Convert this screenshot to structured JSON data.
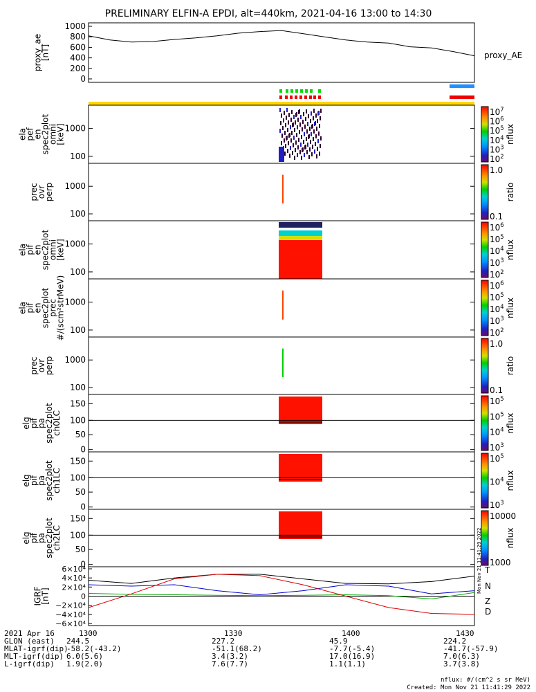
{
  "title": "PRELIMINARY ELFIN-A EPDI, alt=440km, 2021-04-16 13:00 to 14:30",
  "colors": {
    "flag_yellow": "#ffd700",
    "flag_green": "#00dd00",
    "flag_red": "#ee0000",
    "flag_blue": "#1e90ff",
    "mag_T": "#000000",
    "mag_N": "#0000cc",
    "mag_Z": "#00aa00",
    "mag_D": "#dd0000",
    "spec_red": "#ff1100"
  },
  "chart_data": [
    {
      "type": "line",
      "panel": "proxy_ae",
      "ylabel": "proxy_ae [nT]",
      "legend": "proxy_AE",
      "ylim": [
        0,
        1000
      ],
      "yticks": [
        "1000",
        "800",
        "600",
        "400",
        "200",
        "0"
      ],
      "x_minutes": [
        0,
        5,
        10,
        15,
        20,
        25,
        30,
        35,
        40,
        45,
        50,
        55,
        60,
        65,
        70,
        75,
        80,
        85,
        90
      ],
      "values": [
        820,
        740,
        700,
        710,
        750,
        780,
        820,
        870,
        900,
        920,
        860,
        800,
        740,
        700,
        680,
        610,
        590,
        520,
        440
      ]
    },
    {
      "type": "heatmap",
      "panel": "elx_pef_en_spec2plot_omni",
      "ylabel": "ela pef en spec2plot omni [keV]",
      "yticks": [
        "1000",
        "100"
      ],
      "colorbar_ticks": [
        "10^7",
        "10^6",
        "10^5",
        "10^4",
        "10^3",
        "10^2"
      ],
      "colorbar_label": "nflux"
    },
    {
      "type": "heatmap",
      "panel": "prec_ovr_perp_e",
      "ylabel": "prec ovr perp",
      "yticks": [
        "1000",
        "100"
      ],
      "colorbar_ticks": [
        "1.0",
        "0.1"
      ],
      "colorbar_label": "ratio"
    },
    {
      "type": "heatmap",
      "panel": "ela_pif_en_spec2plot_omni",
      "ylabel": "ela pif en spec2plot omni [keV]",
      "yticks": [
        "1000",
        "100"
      ],
      "colorbar_ticks": [
        "10^6",
        "10^5",
        "10^4",
        "10^3",
        "10^2"
      ],
      "colorbar_label": "nflux"
    },
    {
      "type": "heatmap",
      "panel": "ela_pif_en_spec2plot_prec",
      "ylabel": "ela pif en spec2plot prec #/(scm²strMeV)",
      "yticks": [
        "1000",
        "100"
      ],
      "colorbar_ticks": [
        "10^6",
        "10^5",
        "10^4",
        "10^3",
        "10^2"
      ],
      "colorbar_label": "nflux"
    },
    {
      "type": "heatmap",
      "panel": "prec_ovr_perp_i",
      "ylabel": "prec ovr perp",
      "yticks": [
        "1000",
        "100"
      ],
      "colorbar_ticks": [
        "1.0",
        "0.1"
      ],
      "colorbar_label": "ratio"
    },
    {
      "type": "heatmap",
      "panel": "pa_ch0LC",
      "ylabel": "elg pif pa spec2plot ch0LC",
      "yticks": [
        "150",
        "100",
        "50",
        "0"
      ],
      "colorbar_ticks": [
        "10^5",
        "10^5",
        "10^4",
        "10^3"
      ],
      "colorbar_label": "nflux"
    },
    {
      "type": "heatmap",
      "panel": "pa_ch1LC",
      "ylabel": "elg pif pa spec2plot ch1LC",
      "yticks": [
        "150",
        "100",
        "50",
        "0"
      ],
      "colorbar_ticks": [
        "10^5",
        "10^4",
        "10^3"
      ],
      "colorbar_label": "nflux"
    },
    {
      "type": "heatmap",
      "panel": "pa_ch2LC",
      "ylabel": "elg pif pa spec2plot ch2LC",
      "yticks": [
        "150",
        "100",
        "50",
        "0"
      ],
      "colorbar_ticks": [
        "10000",
        "1000"
      ],
      "colorbar_label": "nflux"
    },
    {
      "type": "line",
      "panel": "igrf",
      "ylabel": "IGRF [nT]",
      "ylim": [
        -60000,
        60000
      ],
      "yticks": [
        "6×10⁴",
        "4×10⁴",
        "2×10⁴",
        "0",
        "−2×10⁴",
        "−4×10⁴",
        "−6×10⁴"
      ],
      "x_minutes": [
        0,
        10,
        20,
        30,
        40,
        50,
        60,
        70,
        80,
        90
      ],
      "series": [
        {
          "name": "T",
          "values": [
            35000,
            28000,
            40000,
            48000,
            48000,
            38000,
            28000,
            27000,
            32000,
            44000
          ]
        },
        {
          "name": "N",
          "values": [
            25000,
            22000,
            25000,
            12000,
            3000,
            12000,
            25000,
            22000,
            5000,
            12000
          ]
        },
        {
          "name": "Z",
          "values": [
            6000,
            4000,
            3000,
            2000,
            1000,
            2000,
            3000,
            1000,
            -6000,
            8000
          ]
        },
        {
          "name": "D",
          "values": [
            -25000,
            5000,
            38000,
            48000,
            45000,
            25000,
            0,
            -25000,
            -38000,
            -40000
          ]
        }
      ]
    }
  ],
  "footer": {
    "rows": [
      {
        "label": "2021 Apr 16",
        "vals": [
          "1300",
          "1330",
          "1400",
          "1430"
        ]
      },
      {
        "label": "GLON (east)",
        "vals": [
          "244.5",
          "227.2",
          "45.9",
          "224.2"
        ]
      },
      {
        "label": "MLAT-igrf(dip)",
        "vals": [
          "-58.2(-43.2)",
          "-51.1(68.2)",
          "-7.7(-5.4)",
          "-41.7(-57.9)"
        ]
      },
      {
        "label": "MLT-igrf(dip)",
        "vals": [
          "6.0(5.6)",
          "3.4(3.2)",
          "17.0(16.9)",
          "7.0(6.3)"
        ]
      },
      {
        "label": "L-igrf(dip)",
        "vals": [
          "1.9(2.0)",
          "7.6(7.7)",
          "1.1(1.1)",
          "3.7(3.8)"
        ]
      }
    ],
    "units_note": "nflux: #/(cm^2 s sr MeV)",
    "created": "Created: Mon Nov 21 11:41:29 2022",
    "side_stamp": "Mon Nov 21 11:41:29 2022"
  }
}
